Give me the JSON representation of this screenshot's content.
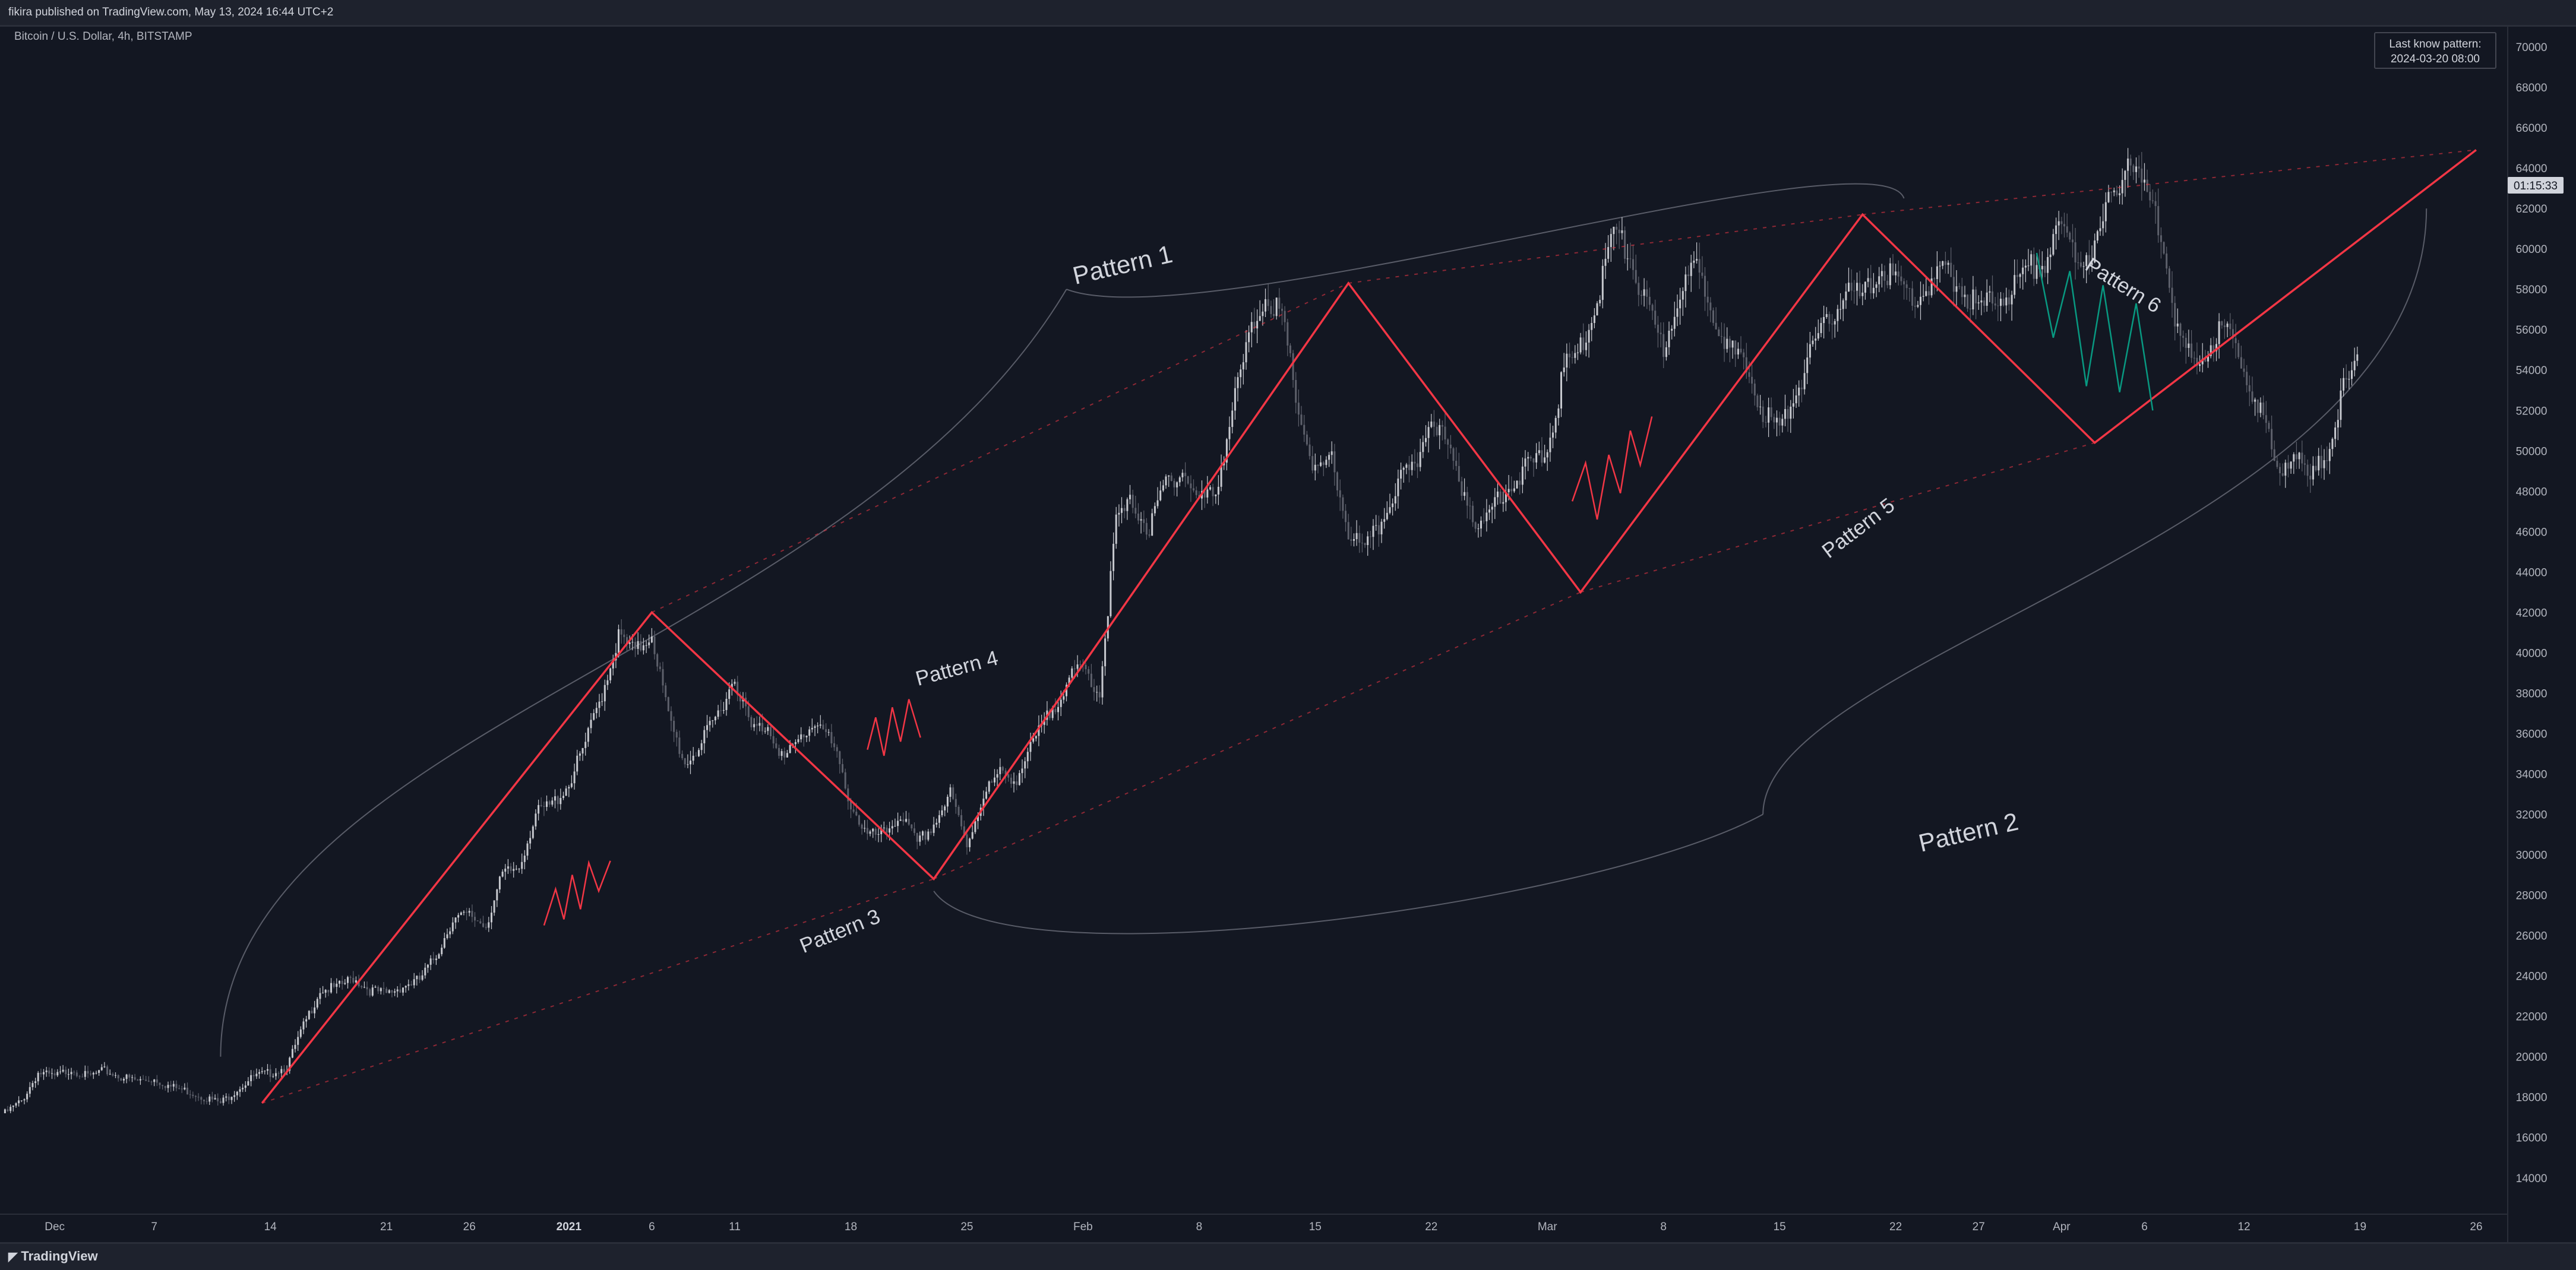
{
  "header": {
    "published": "fikira published on TradingView.com, May 13, 2024 16:44 UTC+2"
  },
  "footer": {
    "brand": "TradingView"
  },
  "chart_data": {
    "type": "candlestick",
    "symbol_label": "Bitcoin / U.S. Dollar, 4h, BITSTAMP",
    "last_pattern_box": {
      "line1": "Last know pattern:",
      "line2": "2024-03-20 08:00"
    },
    "price_tag": "01:15:33",
    "y_ticks": [
      14000,
      16000,
      18000,
      20000,
      22000,
      24000,
      26000,
      28000,
      30000,
      32000,
      34000,
      36000,
      38000,
      40000,
      42000,
      44000,
      46000,
      48000,
      50000,
      52000,
      54000,
      56000,
      58000,
      60000,
      62000,
      64000,
      66000,
      68000,
      70000
    ],
    "ylim": [
      12200,
      71000
    ],
    "x_ticks": [
      {
        "label": "Dec",
        "bold": false,
        "t": -13
      },
      {
        "label": "7",
        "bold": false,
        "t": -7
      },
      {
        "label": "14",
        "bold": false,
        "t": 0
      },
      {
        "label": "21",
        "bold": false,
        "t": 7
      },
      {
        "label": "26",
        "bold": false,
        "t": 12
      },
      {
        "label": "2021",
        "bold": true,
        "t": 18
      },
      {
        "label": "6",
        "bold": false,
        "t": 23
      },
      {
        "label": "11",
        "bold": false,
        "t": 28
      },
      {
        "label": "18",
        "bold": false,
        "t": 35
      },
      {
        "label": "25",
        "bold": false,
        "t": 42
      },
      {
        "label": "Feb",
        "bold": false,
        "t": 49
      },
      {
        "label": "8",
        "bold": false,
        "t": 56
      },
      {
        "label": "15",
        "bold": false,
        "t": 63
      },
      {
        "label": "22",
        "bold": false,
        "t": 70
      },
      {
        "label": "Mar",
        "bold": false,
        "t": 77
      },
      {
        "label": "8",
        "bold": false,
        "t": 84
      },
      {
        "label": "15",
        "bold": false,
        "t": 91
      },
      {
        "label": "22",
        "bold": false,
        "t": 98
      },
      {
        "label": "27",
        "bold": false,
        "t": 103
      },
      {
        "label": "Apr",
        "bold": false,
        "t": 108
      },
      {
        "label": "6",
        "bold": false,
        "t": 113
      },
      {
        "label": "12",
        "bold": false,
        "t": 119
      },
      {
        "label": "19",
        "bold": false,
        "t": 126
      },
      {
        "label": "26",
        "bold": false,
        "t": 133
      }
    ],
    "xlim": [
      -16.3,
      134.9
    ],
    "price_path": [
      [
        -16,
        17200
      ],
      [
        -15,
        17800
      ],
      [
        -14,
        19200
      ],
      [
        -13,
        19000
      ],
      [
        -12,
        19400
      ],
      [
        -11,
        19000
      ],
      [
        -10,
        19300
      ],
      [
        -9,
        19000
      ],
      [
        -8,
        18800
      ],
      [
        -7,
        18900
      ],
      [
        -6,
        18500
      ],
      [
        -5,
        18300
      ],
      [
        -4,
        18000
      ],
      [
        -3,
        17700
      ],
      [
        -2,
        18400
      ],
      [
        -1,
        19000
      ],
      [
        0,
        19200
      ],
      [
        1,
        19500
      ],
      [
        2,
        21500
      ],
      [
        3,
        23300
      ],
      [
        4,
        23400
      ],
      [
        5,
        23900
      ],
      [
        6,
        23300
      ],
      [
        7,
        23100
      ],
      [
        8,
        23500
      ],
      [
        9,
        23800
      ],
      [
        10,
        25000
      ],
      [
        11,
        26800
      ],
      [
        12,
        27000
      ],
      [
        13,
        26500
      ],
      [
        14,
        29000
      ],
      [
        15,
        29400
      ],
      [
        16,
        32000
      ],
      [
        17,
        32500
      ],
      [
        18,
        33500
      ],
      [
        19,
        35500
      ],
      [
        20,
        38000
      ],
      [
        21,
        40800
      ],
      [
        22,
        40000
      ],
      [
        23,
        41000
      ],
      [
        24,
        36800
      ],
      [
        25,
        34500
      ],
      [
        26,
        35500
      ],
      [
        27,
        37000
      ],
      [
        28,
        38800
      ],
      [
        29,
        36200
      ],
      [
        30,
        36400
      ],
      [
        31,
        34700
      ],
      [
        32,
        35800
      ],
      [
        33,
        36700
      ],
      [
        34,
        35200
      ],
      [
        35,
        32500
      ],
      [
        36,
        30900
      ],
      [
        37,
        31000
      ],
      [
        38,
        32000
      ],
      [
        39,
        30500
      ],
      [
        40,
        31500
      ],
      [
        41,
        33000
      ],
      [
        42,
        30500
      ],
      [
        43,
        33000
      ],
      [
        44,
        34000
      ],
      [
        45,
        33800
      ],
      [
        46,
        35500
      ],
      [
        47,
        37000
      ],
      [
        48,
        38500
      ],
      [
        49,
        39300
      ],
      [
        50,
        38000
      ],
      [
        51,
        46500
      ],
      [
        52,
        47500
      ],
      [
        53,
        46000
      ],
      [
        54,
        48500
      ],
      [
        55,
        49000
      ],
      [
        56,
        47500
      ],
      [
        57,
        48000
      ],
      [
        58,
        52000
      ],
      [
        59,
        55500
      ],
      [
        60,
        57800
      ],
      [
        61,
        56500
      ],
      [
        62,
        52000
      ],
      [
        63,
        48800
      ],
      [
        64,
        49500
      ],
      [
        65,
        46000
      ],
      [
        66,
        45000
      ],
      [
        67,
        46500
      ],
      [
        68,
        48500
      ],
      [
        69,
        49000
      ],
      [
        70,
        52000
      ],
      [
        71,
        50000
      ],
      [
        72,
        48000
      ],
      [
        73,
        46000
      ],
      [
        74,
        47800
      ],
      [
        75,
        48500
      ],
      [
        76,
        49300
      ],
      [
        77,
        50000
      ],
      [
        78,
        54000
      ],
      [
        79,
        55000
      ],
      [
        80,
        57500
      ],
      [
        81,
        61000
      ],
      [
        82,
        59500
      ],
      [
        83,
        57000
      ],
      [
        84,
        55000
      ],
      [
        85,
        58000
      ],
      [
        86,
        59000
      ],
      [
        87,
        57000
      ],
      [
        88,
        55000
      ],
      [
        89,
        54000
      ],
      [
        90,
        52000
      ],
      [
        91,
        51000
      ],
      [
        92,
        53000
      ],
      [
        93,
        55000
      ],
      [
        94,
        56500
      ],
      [
        95,
        58000
      ],
      [
        96,
        57500
      ],
      [
        97,
        59000
      ],
      [
        98,
        58500
      ],
      [
        99,
        57500
      ],
      [
        100,
        58000
      ],
      [
        101,
        59000
      ],
      [
        102,
        58000
      ],
      [
        103,
        57000
      ],
      [
        104,
        57500
      ],
      [
        105,
        58000
      ],
      [
        106,
        59000
      ],
      [
        107,
        59500
      ],
      [
        108,
        61000
      ],
      [
        109,
        59500
      ],
      [
        110,
        60000
      ],
      [
        111,
        62500
      ],
      [
        112,
        64500
      ],
      [
        113,
        63000
      ],
      [
        114,
        61000
      ],
      [
        115,
        56000
      ],
      [
        116,
        54000
      ],
      [
        117,
        55500
      ],
      [
        118,
        56000
      ],
      [
        119,
        54000
      ],
      [
        120,
        52000
      ],
      [
        121,
        49000
      ],
      [
        122,
        50000
      ],
      [
        123,
        48500
      ],
      [
        124,
        50000
      ],
      [
        125,
        53000
      ],
      [
        126,
        54500
      ]
    ],
    "zigzag_main": [
      [
        -0.5,
        17700
      ],
      [
        23,
        42000
      ],
      [
        40,
        28800
      ],
      [
        65,
        58300
      ],
      [
        79,
        43000
      ],
      [
        96,
        61700
      ],
      [
        110,
        50400
      ],
      [
        133,
        64900
      ]
    ],
    "zigzag_small": [
      {
        "points": [
          [
            16.5,
            26500
          ],
          [
            17.2,
            28300
          ],
          [
            17.7,
            26800
          ],
          [
            18.2,
            29000
          ],
          [
            18.7,
            27300
          ],
          [
            19.2,
            29600
          ],
          [
            19.8,
            28200
          ],
          [
            20.5,
            29700
          ]
        ],
        "color": "#f23645"
      },
      {
        "points": [
          [
            36,
            35200
          ],
          [
            36.5,
            36800
          ],
          [
            37,
            34900
          ],
          [
            37.5,
            37300
          ],
          [
            38,
            35600
          ],
          [
            38.5,
            37700
          ],
          [
            39.2,
            35800
          ]
        ],
        "color": "#f23645"
      },
      {
        "points": [
          [
            78.5,
            47500
          ],
          [
            79.3,
            49400
          ],
          [
            80,
            46600
          ],
          [
            80.7,
            49800
          ],
          [
            81.4,
            47900
          ],
          [
            82,
            51000
          ],
          [
            82.6,
            49300
          ],
          [
            83.3,
            51700
          ]
        ],
        "color": "#f23645"
      },
      {
        "points": [
          [
            106.5,
            59800
          ],
          [
            107.5,
            55600
          ],
          [
            108.5,
            58900
          ],
          [
            109.5,
            53200
          ],
          [
            110.5,
            58200
          ],
          [
            111.5,
            52900
          ],
          [
            112.5,
            57300
          ],
          [
            113.5,
            52000
          ]
        ],
        "color": "#089981"
      }
    ],
    "dashed_lines": [
      {
        "from": [
          23,
          42000
        ],
        "to": [
          65,
          58300
        ]
      },
      {
        "from": [
          65,
          58300
        ],
        "to": [
          96,
          61700
        ]
      },
      {
        "from": [
          96,
          61700
        ],
        "to": [
          133,
          64900
        ]
      },
      {
        "from": [
          -0.5,
          17700
        ],
        "to": [
          40,
          28800
        ]
      },
      {
        "from": [
          40,
          28800
        ],
        "to": [
          79,
          43000
        ]
      },
      {
        "from": [
          79,
          43000
        ],
        "to": [
          110,
          50400
        ]
      }
    ],
    "annotations": [
      {
        "text": "Pattern 1",
        "t": 51.5,
        "p": 58800,
        "size": 42,
        "rotate": -13
      },
      {
        "text": "Pattern 2",
        "t": 102.5,
        "p": 30700,
        "size": 42,
        "rotate": -13
      },
      {
        "text": "Pattern 3",
        "t": 34.5,
        "p": 25900,
        "size": 35,
        "rotate": -22
      },
      {
        "text": "Pattern 4",
        "t": 41.5,
        "p": 38900,
        "size": 35,
        "rotate": -15
      },
      {
        "text": "Pattern 5",
        "t": 96,
        "p": 45900,
        "size": 35,
        "rotate": -37
      },
      {
        "text": "Pattern 6",
        "t": 111.5,
        "p": 57900,
        "size": 35,
        "rotate": 32
      }
    ],
    "brace_curves": [
      [
        [
          -3,
          20000
        ],
        [
          -3,
          36000
        ],
        [
          35,
          40000
        ],
        [
          48,
          58000
        ]
      ],
      [
        [
          48,
          58000
        ],
        [
          56,
          55500
        ],
        [
          97,
          66000
        ],
        [
          98.5,
          62500
        ]
      ],
      [
        [
          40,
          28200
        ],
        [
          44,
          23500
        ],
        [
          80,
          27500
        ],
        [
          90,
          32000
        ]
      ],
      [
        [
          90,
          32000
        ],
        [
          90,
          40000
        ],
        [
          130,
          46000
        ],
        [
          130,
          62000
        ]
      ]
    ]
  }
}
